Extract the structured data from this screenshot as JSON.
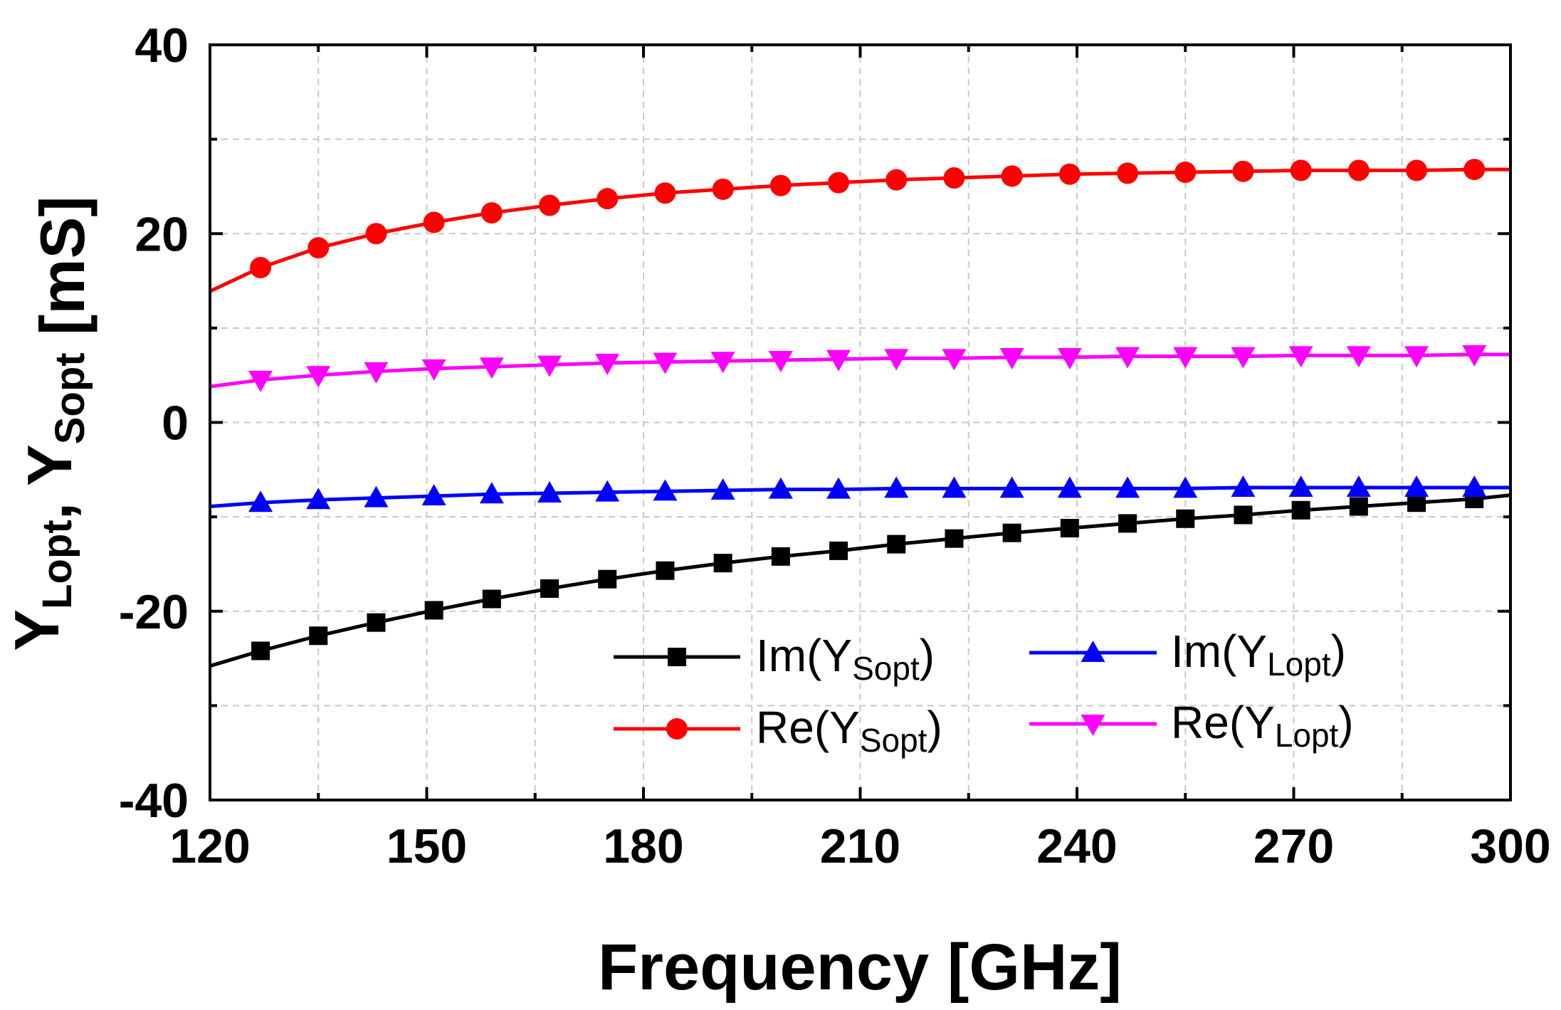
{
  "chart_data": {
    "type": "line",
    "title": "",
    "xlabel": "Frequency [GHz]",
    "ylabel": {
      "parts": [
        {
          "text": "Y",
          "sub": "Lopt"
        },
        {
          "text": ",  "
        },
        {
          "text": "Y",
          "sub": "Sopt"
        },
        {
          "text": " [mS]"
        }
      ]
    },
    "xlim": [
      120,
      300
    ],
    "ylim": [
      -40,
      40
    ],
    "x_ticks": [
      120,
      150,
      180,
      210,
      240,
      270,
      300
    ],
    "x_tick_labels": [
      "120",
      "150",
      "180",
      "210",
      "240",
      "270",
      "300"
    ],
    "y_ticks": [
      -40,
      -20,
      0,
      20,
      40
    ],
    "y_tick_labels": [
      "-40",
      "-20",
      "0",
      "20",
      "40"
    ],
    "x_minor_step": 15,
    "y_minor_step": 10,
    "grid": true,
    "grid_style": "dashed-light-gray",
    "legend_position": "lower-right",
    "x": [
      127,
      135,
      143,
      151,
      159,
      167,
      175,
      183,
      191,
      199,
      207,
      215,
      223,
      231,
      239,
      247,
      255,
      263,
      271,
      279,
      287,
      295
    ],
    "series": [
      {
        "name": "Im(Y_Sopt)",
        "label_main": "Im(Y",
        "label_sub": "Sopt",
        "label_end": ")",
        "color": "#000000",
        "marker": "square",
        "curve_start": [
          120,
          -25.8
        ],
        "curve_end": [
          300,
          -7.7
        ],
        "values": [
          -24.2,
          -22.6,
          -21.2,
          -19.9,
          -18.7,
          -17.6,
          -16.6,
          -15.7,
          -14.9,
          -14.2,
          -13.6,
          -12.9,
          -12.3,
          -11.7,
          -11.2,
          -10.7,
          -10.2,
          -9.8,
          -9.3,
          -8.9,
          -8.5,
          -8.1
        ]
      },
      {
        "name": "Re(Y_Sopt)",
        "label_main": "Re(Y",
        "label_sub": "Sopt",
        "label_end": ")",
        "color": "#ff0000",
        "marker": "circle",
        "curve_start": [
          120,
          13.9
        ],
        "curve_end": [
          300,
          26.8
        ],
        "values": [
          16.4,
          18.5,
          20.0,
          21.2,
          22.2,
          23.0,
          23.7,
          24.3,
          24.7,
          25.1,
          25.4,
          25.7,
          25.9,
          26.1,
          26.3,
          26.4,
          26.5,
          26.6,
          26.7,
          26.7,
          26.7,
          26.8
        ]
      },
      {
        "name": "Im(Y_Lopt)",
        "label_main": "Im(Y",
        "label_sub": "Lopt",
        "label_end": ")",
        "color": "#0000ff",
        "marker": "triangle-up",
        "curve_start": [
          120,
          -8.9
        ],
        "curve_end": [
          300,
          -6.9
        ],
        "values": [
          -8.5,
          -8.2,
          -8.0,
          -7.8,
          -7.6,
          -7.5,
          -7.4,
          -7.3,
          -7.2,
          -7.1,
          -7.1,
          -7.0,
          -7.0,
          -7.0,
          -7.0,
          -7.0,
          -7.0,
          -6.9,
          -6.9,
          -6.9,
          -6.9,
          -6.9
        ]
      },
      {
        "name": "Re(Y_Lopt)",
        "label_main": "Re(Y",
        "label_sub": "Lopt",
        "label_end": ")",
        "color": "#ff00ff",
        "marker": "triangle-down",
        "curve_start": [
          120,
          3.8
        ],
        "curve_end": [
          300,
          7.2
        ],
        "values": [
          4.5,
          5.0,
          5.4,
          5.7,
          5.9,
          6.1,
          6.3,
          6.4,
          6.5,
          6.6,
          6.7,
          6.8,
          6.8,
          6.9,
          6.9,
          7.0,
          7.0,
          7.0,
          7.1,
          7.1,
          7.1,
          7.2
        ]
      }
    ]
  }
}
